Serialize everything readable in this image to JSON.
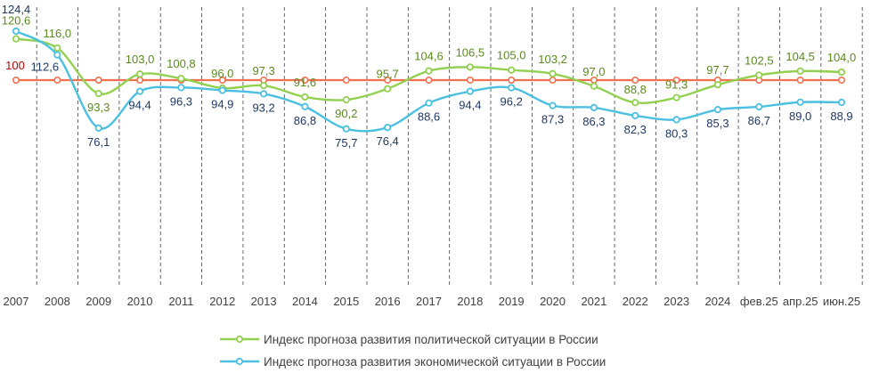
{
  "chart_data": {
    "type": "line",
    "categories": [
      "2007",
      "2008",
      "2009",
      "2010",
      "2011",
      "2012",
      "2013",
      "2014",
      "2015",
      "2016",
      "2017",
      "2018",
      "2019",
      "2020",
      "2021",
      "2022",
      "2023",
      "2024",
      "фев.25",
      "апр.25",
      "июн.25"
    ],
    "series": [
      {
        "name": "Индекс прогноза развития политической ситуации в России",
        "color": "#92d050",
        "label_color": "#5a8a1e",
        "labels": [
          "120,6",
          "116,0",
          "93,3",
          "103,0",
          "100,8",
          "96,0",
          "97,3",
          "91,6",
          "90,2",
          "95,7",
          "104,6",
          "106,5",
          "105,0",
          "103,2",
          "97,0",
          "88,8",
          "91,3",
          "97,7",
          "102,5",
          "104,5",
          "104,0"
        ],
        "values": [
          120.6,
          116.0,
          93.3,
          103.0,
          100.8,
          96.0,
          97.3,
          91.6,
          90.2,
          95.7,
          104.6,
          106.5,
          105.0,
          103.2,
          97.0,
          88.8,
          91.3,
          97.7,
          102.5,
          104.5,
          104.0
        ]
      },
      {
        "name": "Индекс прогноза развития экономической ситуации в России",
        "color": "#4bc0e0",
        "label_color": "#1f3864",
        "labels": [
          "124,4",
          "112,6",
          "76,1",
          "94,4",
          "96,3",
          "94,9",
          "93,2",
          "86,8",
          "75,7",
          "76,4",
          "88,6",
          "94,4",
          "96,2",
          "87,3",
          "86,3",
          "82,3",
          "80,3",
          "85,3",
          "86,7",
          "89,0",
          "88,9"
        ],
        "values": [
          124.4,
          112.6,
          76.1,
          94.4,
          96.3,
          94.9,
          93.2,
          86.8,
          75.7,
          76.4,
          88.6,
          94.4,
          96.2,
          87.3,
          86.3,
          82.3,
          80.3,
          85.3,
          86.7,
          89.0,
          88.9
        ]
      }
    ],
    "reference_line": {
      "value": 100,
      "label": "100",
      "color": "#f07050",
      "label_color": "#c00000"
    },
    "ylim": [
      65,
      128
    ],
    "grid": "vertical dashed separators",
    "legend_position": "bottom-center"
  }
}
